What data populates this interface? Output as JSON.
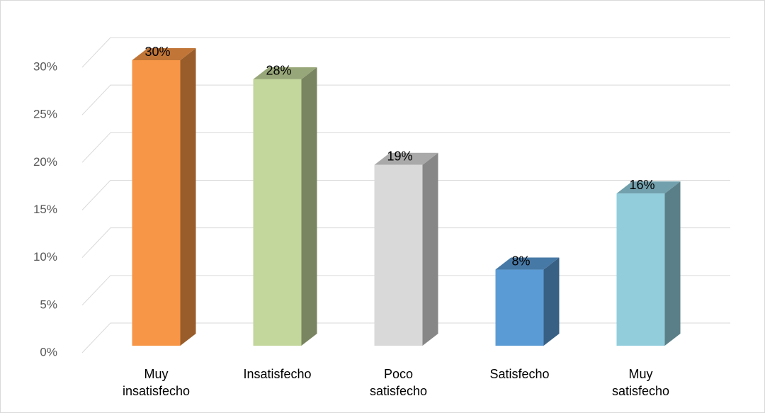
{
  "chart_data": {
    "type": "bar3d",
    "categories": [
      "Muy insatisfecho",
      "Insatisfecho",
      "Poco satisfecho",
      "Satisfecho",
      "Muy satisfecho"
    ],
    "values": [
      30,
      28,
      19,
      8,
      16
    ],
    "value_labels": [
      "30%",
      "28%",
      "19%",
      "8%",
      "16%"
    ],
    "colors": [
      "#f79646",
      "#c3d69b",
      "#d9d9d9",
      "#5b9bd5",
      "#92cddc"
    ],
    "ylim": [
      0,
      30
    ],
    "yticks": [
      {
        "value": 0,
        "label": "0%"
      },
      {
        "value": 5,
        "label": "5%"
      },
      {
        "value": 10,
        "label": "10%"
      },
      {
        "value": 15,
        "label": "15%"
      },
      {
        "value": 20,
        "label": "20%"
      },
      {
        "value": 25,
        "label": "25%"
      },
      {
        "value": 30,
        "label": "30%"
      }
    ],
    "grid": true
  }
}
